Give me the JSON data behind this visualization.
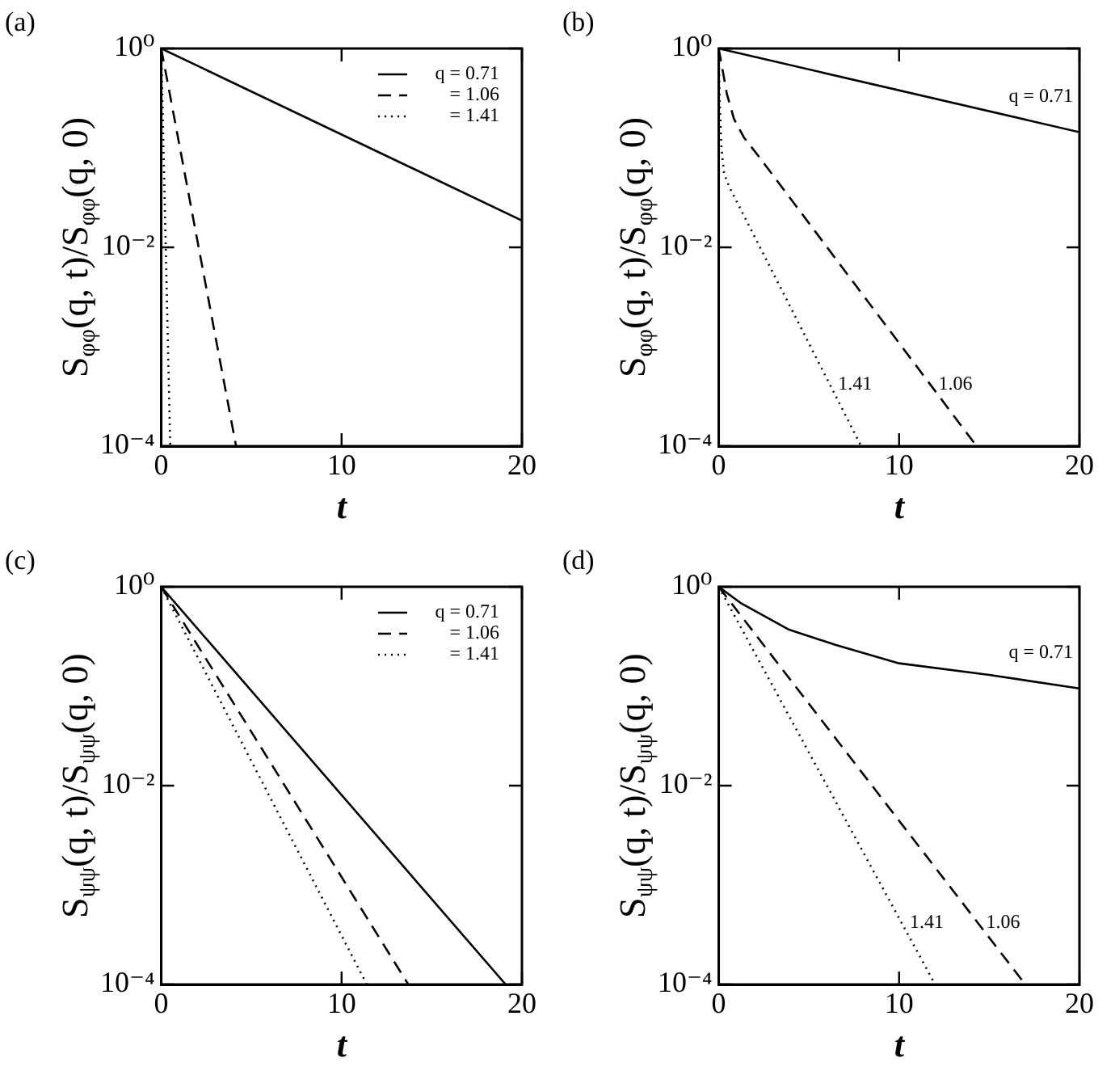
{
  "chart_data": [
    {
      "type": "line",
      "title": "(a)",
      "xlabel": "t",
      "ylabel": "S$_{φφ}$(q, t)/S$_{φφ}$(q, 0)",
      "log": "y",
      "legend": "top right",
      "xlim": [
        0,
        20
      ],
      "xticks": [
        0,
        10,
        20
      ],
      "ylim": [
        0.0001,
        1
      ],
      "yticks": [
        {
          "value": 1,
          "label": "10⁰"
        },
        {
          "value": 0.01,
          "label": "10⁻²"
        },
        {
          "value": 0.0001,
          "label": "10⁻⁴"
        }
      ],
      "series": [
        {
          "name": "q = 0.71",
          "color": "#000000",
          "line_style": "solid",
          "x": [
            0,
            20
          ],
          "values": [
            1,
            0.0186
          ]
        },
        {
          "name": "= 1.06",
          "color": "#000000",
          "line_style": "dashed",
          "x": [
            0,
            4.15
          ],
          "values": [
            1,
            0.0001
          ]
        },
        {
          "name": "= 1.41",
          "color": "#000000",
          "line_style": "dotted",
          "x": [
            0,
            0.5
          ],
          "values": [
            1,
            0.0001
          ]
        }
      ]
    },
    {
      "type": "line",
      "title": "(b)",
      "xlabel": "t",
      "ylabel": "S$_{φφ}$(q, t)/S$_{φφ}$(q, 0)",
      "log": "y",
      "xlim": [
        0,
        20
      ],
      "xticks": [
        0,
        10,
        20
      ],
      "ylim": [
        0.0001,
        1
      ],
      "yticks": [
        {
          "value": 1,
          "label": "10⁰"
        },
        {
          "value": 0.01,
          "label": "10⁻²"
        },
        {
          "value": 0.0001,
          "label": "10⁻⁴"
        }
      ],
      "series": [
        {
          "name": "q = 0.71",
          "color": "#000000",
          "line_style": "solid",
          "x": [
            0,
            20
          ],
          "values": [
            1,
            0.144
          ]
        },
        {
          "name": "1.06",
          "color": "#000000",
          "line_style": "dashed",
          "x": [
            0,
            0.45,
            0.85,
            1.4,
            2.2,
            14.3
          ],
          "values": [
            1,
            0.35,
            0.195,
            0.127,
            0.083,
            0.0001
          ]
        },
        {
          "name": "1.41",
          "color": "#000000",
          "line_style": "dotted",
          "x": [
            0,
            0.05,
            0.15,
            0.3,
            0.6,
            7.9
          ],
          "values": [
            1,
            0.3,
            0.1,
            0.055,
            0.04,
            0.0001
          ]
        }
      ]
    },
    {
      "type": "line",
      "title": "(c)",
      "xlabel": "t",
      "ylabel": "S$_{ψψ}$(q, t)/S$_{ψψ}$(q, 0)",
      "log": "y",
      "legend": "top right",
      "xlim": [
        0,
        20
      ],
      "xticks": [
        0,
        10,
        20
      ],
      "ylim": [
        0.0001,
        1
      ],
      "yticks": [
        {
          "value": 1,
          "label": "10⁰"
        },
        {
          "value": 0.01,
          "label": "10⁻²"
        },
        {
          "value": 0.0001,
          "label": "10⁻⁴"
        }
      ],
      "series": [
        {
          "name": "q = 0.71",
          "color": "#000000",
          "line_style": "solid",
          "x": [
            0,
            19.1
          ],
          "values": [
            1,
            0.0001
          ]
        },
        {
          "name": "= 1.06",
          "color": "#000000",
          "line_style": "dashed",
          "x": [
            0,
            13.7
          ],
          "values": [
            1,
            0.0001
          ]
        },
        {
          "name": "= 1.41",
          "color": "#000000",
          "line_style": "dotted",
          "x": [
            0,
            11.4
          ],
          "values": [
            1,
            0.0001
          ]
        }
      ]
    },
    {
      "type": "line",
      "title": "(d)",
      "xlabel": "t",
      "ylabel": "S$_{ψψ}$(q, t)/S$_{ψψ}$(q, 0)",
      "log": "y",
      "xlim": [
        0,
        20
      ],
      "xticks": [
        0,
        10,
        20
      ],
      "ylim": [
        0.0001,
        1
      ],
      "yticks": [
        {
          "value": 1,
          "label": "10⁰"
        },
        {
          "value": 0.01,
          "label": "10⁻²"
        },
        {
          "value": 0.0001,
          "label": "10⁻⁴"
        }
      ],
      "series": [
        {
          "name": "q = 0.71",
          "color": "#000000",
          "line_style": "solid",
          "x": [
            0,
            1.2,
            3.9,
            6.5,
            10,
            15,
            20
          ],
          "values": [
            1,
            0.69,
            0.37,
            0.26,
            0.17,
            0.13,
            0.095
          ]
        },
        {
          "name": "1.06",
          "color": "#000000",
          "line_style": "dashed",
          "x": [
            0,
            17
          ],
          "values": [
            1,
            0.0001
          ]
        },
        {
          "name": "1.41",
          "color": "#000000",
          "line_style": "dotted",
          "x": [
            0,
            12
          ],
          "values": [
            1,
            0.0001
          ]
        }
      ]
    }
  ]
}
